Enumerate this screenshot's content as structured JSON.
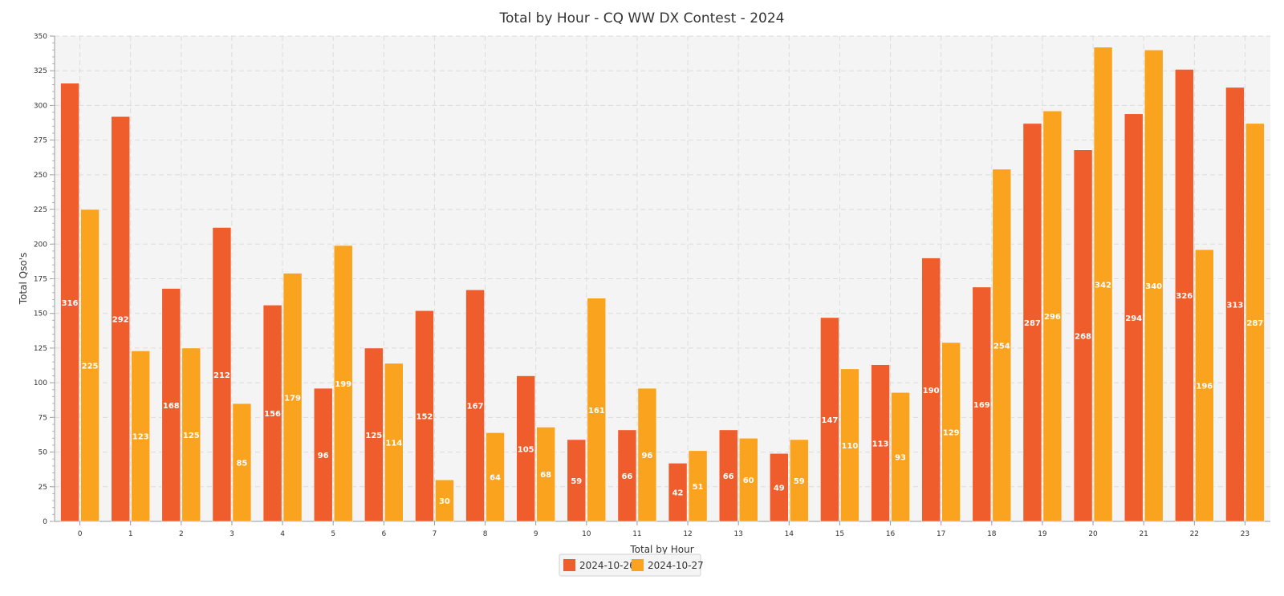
{
  "chart_data": {
    "type": "bar",
    "title": "Total by Hour - CQ WW DX Contest - 2024",
    "xlabel": "Total by Hour",
    "ylabel": "Total Qso's",
    "ylim": [
      0,
      350
    ],
    "ytick_step": 25,
    "grid": true,
    "legend_position": "bottom-center",
    "categories": [
      "0",
      "1",
      "2",
      "3",
      "4",
      "5",
      "6",
      "7",
      "8",
      "9",
      "10",
      "11",
      "12",
      "13",
      "14",
      "15",
      "16",
      "17",
      "18",
      "19",
      "20",
      "21",
      "22",
      "23"
    ],
    "series": [
      {
        "name": "2024-10-26",
        "color": "#f05d2d",
        "values": [
          316,
          292,
          168,
          212,
          156,
          96,
          125,
          152,
          167,
          105,
          59,
          66,
          42,
          66,
          49,
          147,
          113,
          190,
          169,
          287,
          268,
          294,
          326,
          313
        ]
      },
      {
        "name": "2024-10-27",
        "color": "#f9a31e",
        "values": [
          225,
          123,
          125,
          85,
          179,
          199,
          114,
          30,
          64,
          68,
          161,
          96,
          51,
          60,
          59,
          110,
          93,
          129,
          254,
          296,
          342,
          340,
          196,
          287
        ]
      }
    ]
  }
}
